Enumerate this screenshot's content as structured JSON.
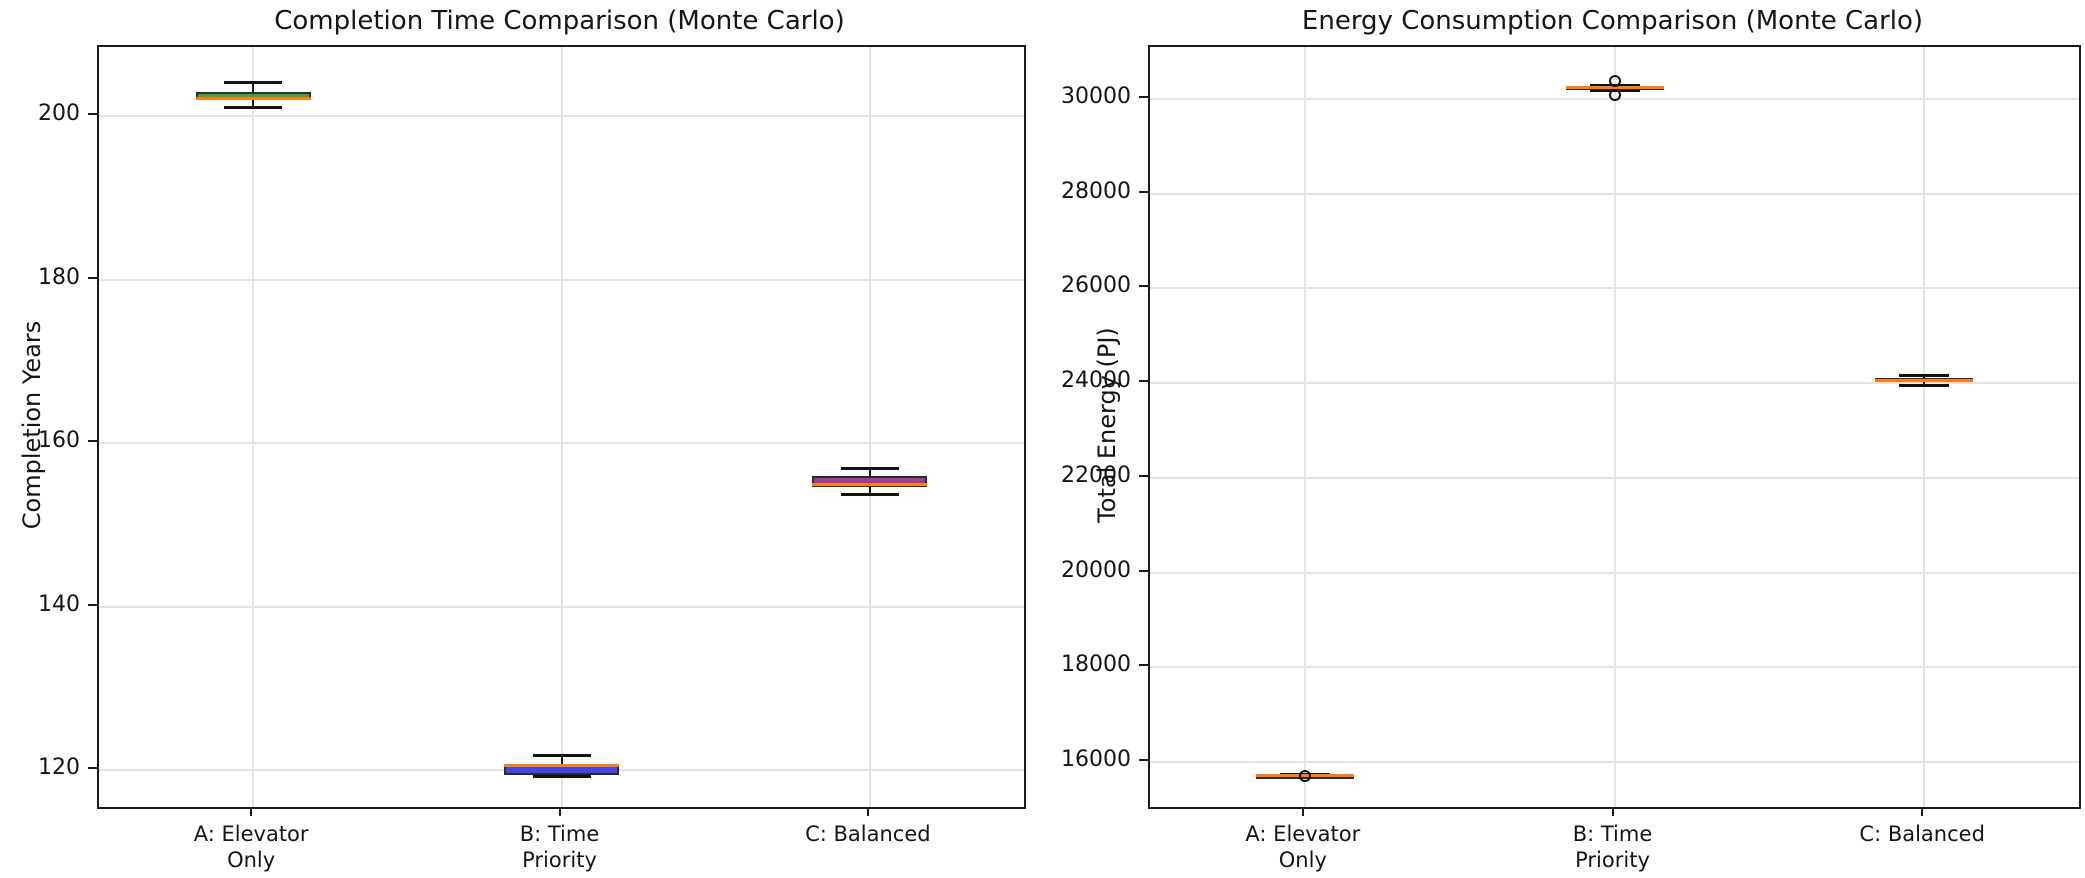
{
  "colors": {
    "background": "#ffffff",
    "spine": "#1a1a1a",
    "grid": "#e4e4e4",
    "median": "#FF7F0E",
    "box_edge": "#2b2b2b",
    "whisker": "#111111",
    "box_fills": {
      "A": "#44A049",
      "B": "#4646E8",
      "C": "#9B3D99"
    }
  },
  "chart_data": [
    {
      "type": "box",
      "title": "Completion Time Comparison (Monte Carlo)",
      "ylabel": "Completion Years",
      "xlabel": "",
      "grid": true,
      "legend": "none",
      "categories": [
        "A: Elevator Only",
        "B: Time Priority",
        "C: Balanced"
      ],
      "category_lines": [
        [
          "A: Elevator",
          "Only"
        ],
        [
          "B: Time",
          "Priority"
        ],
        [
          "C: Balanced"
        ]
      ],
      "ylim": [
        115.5,
        208.5
      ],
      "yticks": [
        120,
        140,
        160,
        180,
        200
      ],
      "ytick_labels": [
        "120",
        "140",
        "160",
        "180",
        "200"
      ],
      "boxes": [
        {
          "name": "A: Elevator Only",
          "whislo": 201.1,
          "q1": 202.0,
          "med": 202.2,
          "q3": 203.0,
          "whishi": 204.2,
          "fliers": [],
          "fill": "#44A049"
        },
        {
          "name": "B: Time Priority",
          "whislo": 119.2,
          "q1": 119.4,
          "med": 120.6,
          "q3": 120.75,
          "whishi": 121.8,
          "fliers": [],
          "fill": "#4646E8"
        },
        {
          "name": "C: Balanced",
          "whislo": 153.8,
          "q1": 154.7,
          "med": 154.95,
          "q3": 156.0,
          "whishi": 156.9,
          "fliers": [],
          "fill": "#9B3D99"
        }
      ]
    },
    {
      "type": "box",
      "title": "Energy Consumption Comparison (Monte Carlo)",
      "ylabel": "Total Energy (PJ)",
      "xlabel": "",
      "grid": true,
      "legend": "none",
      "categories": [
        "A: Elevator Only",
        "B: Time Priority",
        "C: Balanced"
      ],
      "category_lines": [
        [
          "A: Elevator",
          "Only"
        ],
        [
          "B: Time",
          "Priority"
        ],
        [
          "C: Balanced"
        ]
      ],
      "ylim": [
        15050,
        31100
      ],
      "yticks": [
        16000,
        18000,
        20000,
        22000,
        24000,
        26000,
        28000,
        30000
      ],
      "ytick_labels": [
        "16000",
        "18000",
        "20000",
        "22000",
        "24000",
        "26000",
        "28000",
        "30000"
      ],
      "boxes": [
        {
          "name": "A: Elevator Only",
          "whislo": 15700,
          "q1": 15705,
          "med": 15715,
          "q3": 15725,
          "whishi": 15730,
          "fliers": [
            15715
          ],
          "fill": "#44A049"
        },
        {
          "name": "B: Time Priority",
          "whislo": 30180,
          "q1": 30205,
          "med": 30240,
          "q3": 30270,
          "whishi": 30295,
          "fliers": [
            30380,
            30090
          ],
          "fill": "#4646E8"
        },
        {
          "name": "C: Balanced",
          "whislo": 23960,
          "q1": 24040,
          "med": 24060,
          "q3": 24110,
          "whishi": 24160,
          "fliers": [],
          "fill": "#9B3D99"
        }
      ]
    }
  ]
}
